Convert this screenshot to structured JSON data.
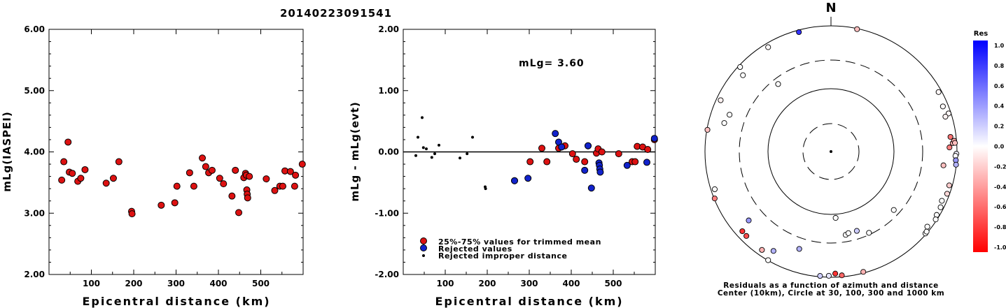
{
  "figure_title": "20140223091541",
  "colors": {
    "trimmed": "#dd1111",
    "rejected": "#1122cc",
    "improper": "#000000"
  },
  "chart_data": [
    {
      "type": "scatter",
      "title": "",
      "xlabel": "Epicentral distance (km)",
      "ylabel": "mLg(IASPEI)",
      "xlim": [
        0,
        600
      ],
      "ylim": [
        2.0,
        6.0
      ],
      "xticks": [
        "100",
        "200",
        "300",
        "400",
        "500"
      ],
      "yticks": [
        "2.00",
        "3.00",
        "4.00",
        "5.00",
        "6.00"
      ],
      "series": [
        {
          "key": "mag",
          "points": [
            [
              30,
              3.54
            ],
            [
              35,
              3.84
            ],
            [
              45,
              4.16
            ],
            [
              48,
              3.67
            ],
            [
              55,
              3.65
            ],
            [
              68,
              3.52
            ],
            [
              75,
              3.57
            ],
            [
              85,
              3.71
            ],
            [
              135,
              3.49
            ],
            [
              152,
              3.57
            ],
            [
              165,
              3.84
            ],
            [
              195,
              3.03
            ],
            [
              196,
              2.99
            ],
            [
              265,
              3.13
            ],
            [
              297,
              3.17
            ],
            [
              302,
              3.44
            ],
            [
              332,
              3.66
            ],
            [
              342,
              3.44
            ],
            [
              362,
              3.9
            ],
            [
              370,
              3.76
            ],
            [
              377,
              3.66
            ],
            [
              385,
              3.7
            ],
            [
              403,
              3.57
            ],
            [
              412,
              3.48
            ],
            [
              432,
              3.28
            ],
            [
              440,
              3.7
            ],
            [
              448,
              3.01
            ],
            [
              460,
              3.58
            ],
            [
              464,
              3.65
            ],
            [
              466,
              3.62
            ],
            [
              467,
              3.38
            ],
            [
              468,
              3.31
            ],
            [
              469,
              3.25
            ],
            [
              473,
              3.6
            ],
            [
              513,
              3.56
            ],
            [
              533,
              3.37
            ],
            [
              545,
              3.44
            ],
            [
              552,
              3.44
            ],
            [
              557,
              3.69
            ],
            [
              570,
              3.68
            ],
            [
              580,
              3.44
            ],
            [
              582,
              3.62
            ],
            [
              598,
              3.8
            ]
          ]
        }
      ]
    },
    {
      "type": "scatter",
      "title": "",
      "xlabel": "Epicentral distance (km)",
      "ylabel": "mLg - mLg(evt)",
      "xlim": [
        0,
        600
      ],
      "ylim": [
        -2.0,
        2.0
      ],
      "xticks": [
        "100",
        "200",
        "300",
        "400",
        "500"
      ],
      "yticks": [
        "-2.00",
        "-1.00",
        "0.00",
        "1.00",
        "2.00"
      ],
      "annotation": "mLg= 3.60",
      "legend_position": "bottom-left",
      "series": [
        {
          "name": "25%-75% values for trimmed mean",
          "key": "trimmed",
          "points": [
            [
              265,
              -0.47
            ],
            [
              302,
              -0.16
            ],
            [
              330,
              0.06
            ],
            [
              342,
              -0.16
            ],
            [
              370,
              0.06
            ],
            [
              385,
              0.1
            ],
            [
              403,
              -0.03
            ],
            [
              412,
              -0.12
            ],
            [
              432,
              -0.16
            ],
            [
              440,
              0.1
            ],
            [
              460,
              -0.02
            ],
            [
              464,
              0.05
            ],
            [
              473,
              0.0
            ],
            [
              513,
              -0.03
            ],
            [
              545,
              -0.16
            ],
            [
              552,
              -0.16
            ],
            [
              557,
              0.09
            ],
            [
              570,
              0.08
            ],
            [
              582,
              0.04
            ],
            [
              598,
              0.2
            ]
          ]
        },
        {
          "name": "Rejected values",
          "key": "rejected",
          "points": [
            [
              265,
              -0.47
            ],
            [
              297,
              -0.43
            ],
            [
              362,
              0.3
            ],
            [
              370,
              0.16
            ],
            [
              377,
              0.08
            ],
            [
              432,
              -0.3
            ],
            [
              440,
              0.1
            ],
            [
              448,
              -0.59
            ],
            [
              466,
              -0.18
            ],
            [
              467,
              -0.22
            ],
            [
              468,
              -0.28
            ],
            [
              469,
              -0.33
            ],
            [
              533,
              -0.22
            ],
            [
              580,
              -0.17
            ],
            [
              598,
              0.22
            ]
          ]
        },
        {
          "name": "Rejected improper distance",
          "key": "improper",
          "points": [
            [
              30,
              -0.06
            ],
            [
              35,
              0.24
            ],
            [
              45,
              0.56
            ],
            [
              48,
              0.07
            ],
            [
              55,
              0.05
            ],
            [
              68,
              -0.09
            ],
            [
              75,
              -0.03
            ],
            [
              85,
              0.11
            ],
            [
              135,
              -0.1
            ],
            [
              152,
              -0.03
            ],
            [
              165,
              0.24
            ],
            [
              195,
              -0.57
            ],
            [
              196,
              -0.6
            ]
          ]
        }
      ]
    },
    {
      "type": "polar-scatter",
      "north_label": "N",
      "caption_line1": "Residuals as a function of azimuth and distance",
      "caption_line2": "Center (10km), Circle at 30, 100, 300 and 1000 km",
      "colorbar": {
        "title": "Res",
        "ticks": [
          "1.0",
          "0.8",
          "0.6",
          "0.4",
          "0.2",
          "0.0",
          "-0.2",
          "-0.4",
          "-0.6",
          "-0.8",
          "-1.0"
        ],
        "max_color": "#0000ff",
        "mid_color": "#ffffff",
        "min_color": "#ff0000"
      },
      "points": [
        {
          "az": 345,
          "dist": 930,
          "res": 0.8
        },
        {
          "az": 12,
          "dist": 980,
          "res": -0.25
        },
        {
          "az": 329,
          "dist": 870,
          "res": -0.02
        },
        {
          "az": 313,
          "dist": 940,
          "res": 0.0
        },
        {
          "az": 311,
          "dist": 720,
          "res": 0.0
        },
        {
          "az": 295,
          "dist": 860,
          "res": -0.05
        },
        {
          "az": 290,
          "dist": 530,
          "res": 0.0
        },
        {
          "az": 322,
          "dist": 240,
          "res": 0.0
        },
        {
          "az": 72,
          "dist": 920,
          "res": -0.03
        },
        {
          "az": 68,
          "dist": 830,
          "res": -0.02
        },
        {
          "az": 73,
          "dist": 800,
          "res": -0.05
        },
        {
          "az": 61,
          "dist": 900,
          "res": -0.03
        },
        {
          "az": 88,
          "dist": 770,
          "res": -0.5
        },
        {
          "az": 83,
          "dist": 820,
          "res": -0.55
        },
        {
          "az": 86,
          "dist": 870,
          "res": -0.3
        },
        {
          "az": 85,
          "dist": 920,
          "res": -0.35
        },
        {
          "az": 86,
          "dist": 940,
          "res": -0.25
        },
        {
          "az": 91,
          "dist": 980,
          "res": 0.05
        },
        {
          "az": 92,
          "dist": 950,
          "res": 0.0
        },
        {
          "az": 94,
          "dist": 970,
          "res": 0.4
        },
        {
          "az": 96,
          "dist": 990,
          "res": 0.3
        },
        {
          "az": 97,
          "dist": 640,
          "res": -0.25
        },
        {
          "az": 106,
          "dist": 900,
          "res": -0.2
        },
        {
          "az": 110,
          "dist": 920,
          "res": -0.15
        },
        {
          "az": 114,
          "dist": 850,
          "res": 0.0
        },
        {
          "az": 117,
          "dist": 900,
          "res": 0.0
        },
        {
          "az": 121,
          "dist": 910,
          "res": 0.0
        },
        {
          "az": 123,
          "dist": 960,
          "res": 0.0
        },
        {
          "az": 131,
          "dist": 970,
          "res": 0.0
        },
        {
          "az": 130,
          "dist": 960,
          "res": 0.0
        },
        {
          "az": 128,
          "dist": 1000,
          "res": 0.0
        },
        {
          "az": 155,
          "dist": 280,
          "res": 0.0
        },
        {
          "az": 170,
          "dist": 230,
          "res": 0.0
        },
        {
          "az": 168,
          "dist": 220,
          "res": 0.0
        },
        {
          "az": 162,
          "dist": 220,
          "res": 0.2
        },
        {
          "az": 176,
          "dist": 115,
          "res": 0.0
        },
        {
          "az": 133,
          "dist": 240,
          "res": 0.0
        },
        {
          "az": 165,
          "dist": 960,
          "res": -0.3
        },
        {
          "az": 175,
          "dist": 950,
          "res": -0.6
        },
        {
          "az": 178,
          "dist": 880,
          "res": -0.8
        },
        {
          "az": 181,
          "dist": 950,
          "res": 0.1
        },
        {
          "az": 185,
          "dist": 970,
          "res": 0.2
        },
        {
          "az": 198,
          "dist": 440,
          "res": 0.3
        },
        {
          "az": 210,
          "dist": 680,
          "res": 0.3
        },
        {
          "az": 215,
          "dist": 820,
          "res": -0.3
        },
        {
          "az": 210,
          "dist": 990,
          "res": 0.0
        },
        {
          "az": 225,
          "dist": 800,
          "res": -0.7
        },
        {
          "az": 228,
          "dist": 790,
          "res": -0.8
        },
        {
          "az": 230,
          "dist": 520,
          "res": 0.4
        },
        {
          "az": 248,
          "dist": 980,
          "res": -0.5
        },
        {
          "az": 252,
          "dist": 1000,
          "res": 0.0
        },
        {
          "az": 280,
          "dist": 980,
          "res": -0.25
        },
        {
          "az": 285,
          "dist": 580,
          "res": 0.0
        }
      ]
    }
  ]
}
